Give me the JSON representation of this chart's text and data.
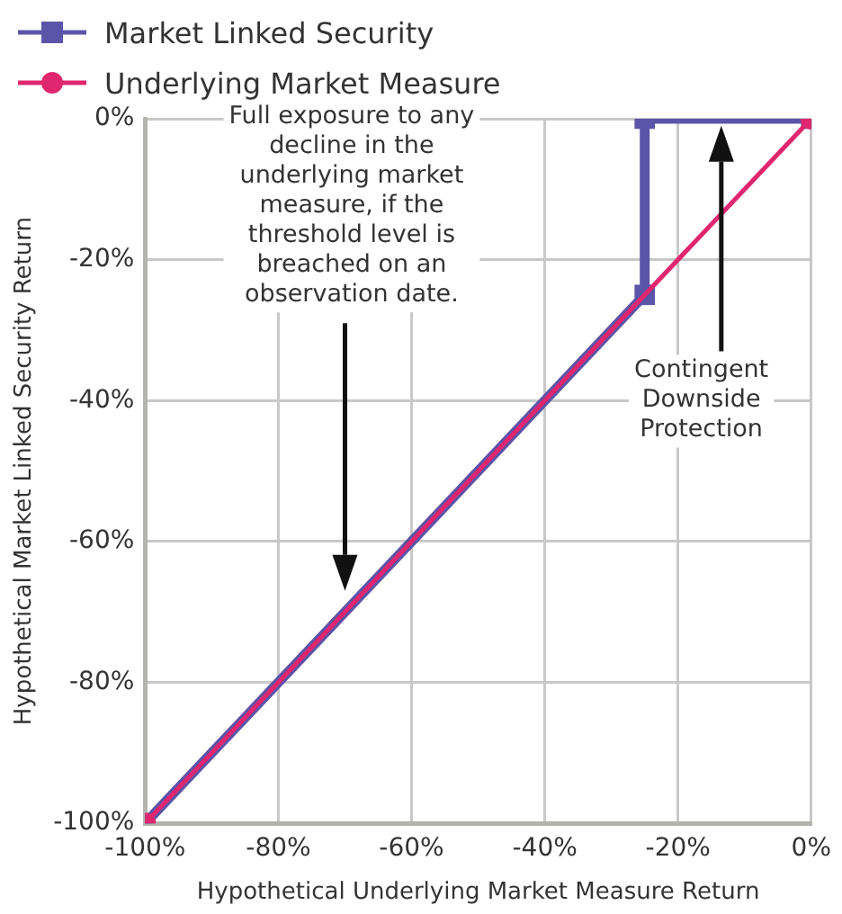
{
  "chart_data": {
    "type": "line",
    "xlabel": "Hypothetical Underlying Market Measure Return",
    "ylabel": "Hypothetical Market Linked Security Return",
    "xlim": [
      -100,
      0
    ],
    "ylim": [
      -100,
      0
    ],
    "xticks": [
      {
        "value": -100,
        "label": "-100%"
      },
      {
        "value": -80,
        "label": "-80%"
      },
      {
        "value": -60,
        "label": "-60%"
      },
      {
        "value": -40,
        "label": "-40%"
      },
      {
        "value": -20,
        "label": "-20%"
      },
      {
        "value": 0,
        "label": "0%"
      }
    ],
    "yticks": [
      {
        "value": -100,
        "label": "-100%"
      },
      {
        "value": -80,
        "label": "-80%"
      },
      {
        "value": -60,
        "label": "-60%"
      },
      {
        "value": -40,
        "label": "-40%"
      },
      {
        "value": -20,
        "label": "-20%"
      },
      {
        "value": 0,
        "label": "0%"
      }
    ],
    "grid": true,
    "legend": "top left",
    "line_style": "solid",
    "series": [
      {
        "name": "Market Linked Security",
        "color": "#5b54a8",
        "marker": "square",
        "x": [
          -100,
          -25,
          -25,
          0
        ],
        "values": [
          -100,
          -25,
          0,
          0
        ]
      },
      {
        "name": "Underlying Market Measure",
        "color": "#e0266f",
        "marker": "circle",
        "x": [
          -100,
          0
        ],
        "values": [
          -100,
          0
        ]
      }
    ],
    "annotations": [
      "Full exposure to any decline in the underlying market measure, if the threshold level is breached on an observation date.",
      "Contingent Downside Protection"
    ]
  }
}
